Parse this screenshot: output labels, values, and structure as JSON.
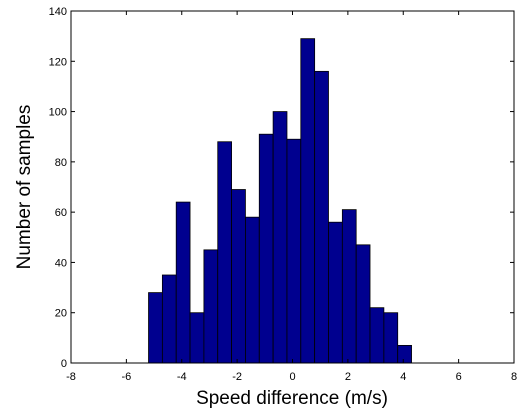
{
  "chart_data": {
    "type": "bar",
    "xlabel": "Speed difference (m/s)",
    "ylabel": "Number of samples",
    "xlim": [
      -8,
      8
    ],
    "ylim": [
      0,
      140
    ],
    "xticks": [
      "-8",
      "-6",
      "-4",
      "-2",
      "0",
      "2",
      "4",
      "6",
      "8"
    ],
    "yticks": [
      "0",
      "20",
      "40",
      "60",
      "80",
      "100",
      "120",
      "140"
    ],
    "grid": false,
    "bar_color": "#00008f",
    "bar_edge_color": "#000000",
    "bins": [
      {
        "x0": -5.2,
        "x1": -4.7,
        "value": 28
      },
      {
        "x0": -4.7,
        "x1": -4.2,
        "value": 35
      },
      {
        "x0": -4.2,
        "x1": -3.7,
        "value": 64
      },
      {
        "x0": -3.7,
        "x1": -3.2,
        "value": 20
      },
      {
        "x0": -3.2,
        "x1": -2.7,
        "value": 45
      },
      {
        "x0": -2.7,
        "x1": -2.2,
        "value": 88
      },
      {
        "x0": -2.2,
        "x1": -1.7,
        "value": 69
      },
      {
        "x0": -1.7,
        "x1": -1.2,
        "value": 58
      },
      {
        "x0": -1.2,
        "x1": -0.7,
        "value": 91
      },
      {
        "x0": -0.7,
        "x1": -0.2,
        "value": 100
      },
      {
        "x0": -0.2,
        "x1": 0.3,
        "value": 89
      },
      {
        "x0": 0.3,
        "x1": 0.8,
        "value": 129
      },
      {
        "x0": 0.8,
        "x1": 1.3,
        "value": 116
      },
      {
        "x0": 1.3,
        "x1": 1.8,
        "value": 56
      },
      {
        "x0": 1.8,
        "x1": 2.3,
        "value": 61
      },
      {
        "x0": 2.3,
        "x1": 2.8,
        "value": 47
      },
      {
        "x0": 2.8,
        "x1": 3.3,
        "value": 22
      },
      {
        "x0": 3.3,
        "x1": 3.8,
        "value": 20
      },
      {
        "x0": 3.8,
        "x1": 4.3,
        "value": 7
      }
    ]
  }
}
